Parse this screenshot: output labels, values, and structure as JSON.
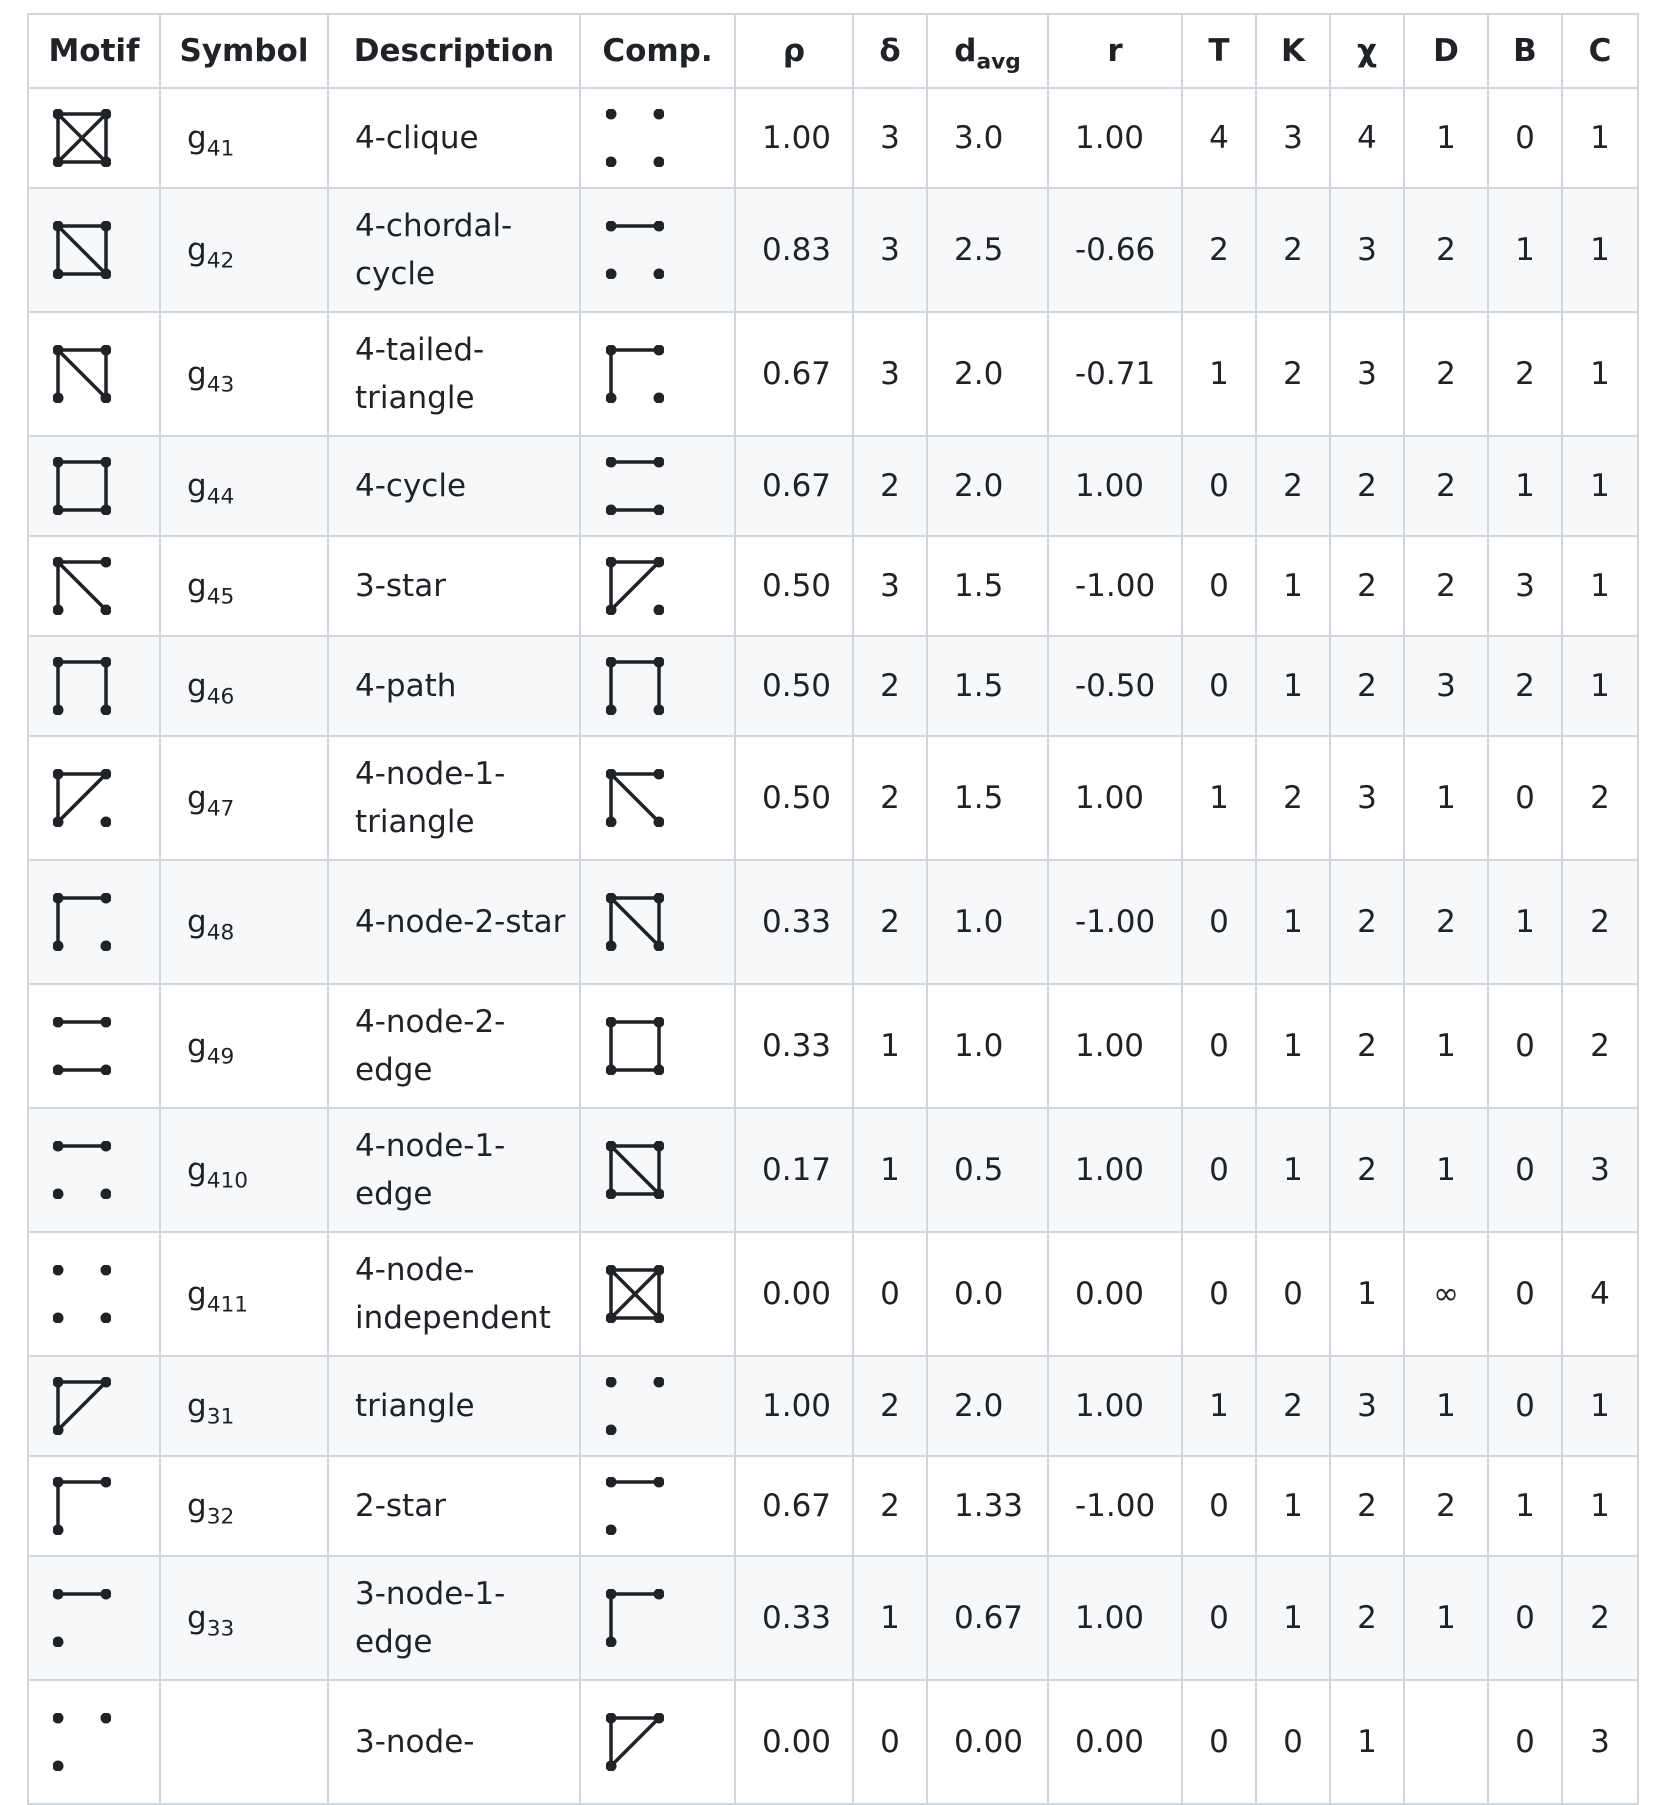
{
  "headers": {
    "motif": "Motif",
    "symbol": "Symbol",
    "description": "Description",
    "comp": "Comp.",
    "rho": "ρ",
    "delta": "δ",
    "davg_main": "d",
    "davg_sub": "avg",
    "r": "r",
    "T": "T",
    "K": "K",
    "chi": "χ",
    "D": "D",
    "B": "B",
    "C": "C"
  },
  "rows": [
    {
      "motif": "g41-motif-icon",
      "comp": "g411-motif-icon",
      "sym_main": "g",
      "sym_sub": "41",
      "description": "4-clique",
      "rho": "1.00",
      "delta": "3",
      "davg": "3.0",
      "r": "1.00",
      "T": "4",
      "K": "3",
      "chi": "4",
      "D": "1",
      "B": "0",
      "C": "1"
    },
    {
      "motif": "g42-motif-icon",
      "comp": "g410-motif-icon",
      "sym_main": "g",
      "sym_sub": "42",
      "description": "4-chordal-cycle",
      "rho": "0.83",
      "delta": "3",
      "davg": "2.5",
      "r": "-0.66",
      "T": "2",
      "K": "2",
      "chi": "3",
      "D": "2",
      "B": "1",
      "C": "1"
    },
    {
      "motif": "g43-motif-icon",
      "comp": "g48-motif-icon",
      "sym_main": "g",
      "sym_sub": "43",
      "description": "4-tailed-triangle",
      "rho": "0.67",
      "delta": "3",
      "davg": "2.0",
      "r": "-0.71",
      "T": "1",
      "K": "2",
      "chi": "3",
      "D": "2",
      "B": "2",
      "C": "1"
    },
    {
      "motif": "g44-motif-icon",
      "comp": "g49-motif-icon",
      "sym_main": "g",
      "sym_sub": "44",
      "description": "4-cycle",
      "rho": "0.67",
      "delta": "2",
      "davg": "2.0",
      "r": "1.00",
      "T": "0",
      "K": "2",
      "chi": "2",
      "D": "2",
      "B": "1",
      "C": "1"
    },
    {
      "motif": "g45-motif-icon",
      "comp": "g47-motif-icon",
      "sym_main": "g",
      "sym_sub": "45",
      "description": "3-star",
      "rho": "0.50",
      "delta": "3",
      "davg": "1.5",
      "r": "-1.00",
      "T": "0",
      "K": "1",
      "chi": "2",
      "D": "2",
      "B": "3",
      "C": "1"
    },
    {
      "motif": "g46-motif-icon",
      "comp": "g46-motif-icon",
      "sym_main": "g",
      "sym_sub": "46",
      "description": "4-path",
      "rho": "0.50",
      "delta": "2",
      "davg": "1.5",
      "r": "-0.50",
      "T": "0",
      "K": "1",
      "chi": "2",
      "D": "3",
      "B": "2",
      "C": "1"
    },
    {
      "motif": "g47-motif-icon",
      "comp": "g45-motif-icon",
      "sym_main": "g",
      "sym_sub": "47",
      "description": "4-node-1-triangle",
      "rho": "0.50",
      "delta": "2",
      "davg": "1.5",
      "r": "1.00",
      "T": "1",
      "K": "2",
      "chi": "3",
      "D": "1",
      "B": "0",
      "C": "2"
    },
    {
      "motif": "g48-motif-icon",
      "comp": "g43-motif-icon",
      "sym_main": "g",
      "sym_sub": "48",
      "description": "4-node-2-star",
      "rho": "0.33",
      "delta": "2",
      "davg": "1.0",
      "r": "-1.00",
      "T": "0",
      "K": "1",
      "chi": "2",
      "D": "2",
      "B": "1",
      "C": "2"
    },
    {
      "motif": "g49-motif-icon",
      "comp": "g44-motif-icon",
      "sym_main": "g",
      "sym_sub": "49",
      "description": "4-node-2-edge",
      "rho": "0.33",
      "delta": "1",
      "davg": "1.0",
      "r": "1.00",
      "T": "0",
      "K": "1",
      "chi": "2",
      "D": "1",
      "B": "0",
      "C": "2"
    },
    {
      "motif": "g410-motif-icon",
      "comp": "g42-motif-icon",
      "sym_main": "g",
      "sym_sub": "410",
      "description": "4-node-1-edge",
      "rho": "0.17",
      "delta": "1",
      "davg": "0.5",
      "r": "1.00",
      "T": "0",
      "K": "1",
      "chi": "2",
      "D": "1",
      "B": "0",
      "C": "3"
    },
    {
      "motif": "g411-motif-icon",
      "comp": "g41-motif-icon",
      "sym_main": "g",
      "sym_sub": "411",
      "description": "4-node-independent",
      "rho": "0.00",
      "delta": "0",
      "davg": "0.0",
      "r": "0.00",
      "T": "0",
      "K": "0",
      "chi": "1",
      "D": "∞",
      "B": "0",
      "C": "4"
    },
    {
      "motif": "g31-motif-icon",
      "comp": "g33-motif-icon",
      "sym_main": "g",
      "sym_sub": "31",
      "description": "triangle",
      "rho": "1.00",
      "delta": "2",
      "davg": "2.0",
      "r": "1.00",
      "T": "1",
      "K": "2",
      "chi": "3",
      "D": "1",
      "B": "0",
      "C": "1"
    },
    {
      "motif": "g32-motif-icon",
      "comp": "g33b-motif-icon",
      "sym_main": "g",
      "sym_sub": "32",
      "description": "2-star",
      "rho": "0.67",
      "delta": "2",
      "davg": "1.33",
      "r": "-1.00",
      "T": "0",
      "K": "1",
      "chi": "2",
      "D": "2",
      "B": "1",
      "C": "1"
    },
    {
      "motif": "g33b-motif-icon",
      "comp": "g32-motif-icon",
      "sym_main": "g",
      "sym_sub": "33",
      "description": "3-node-1-edge",
      "rho": "0.33",
      "delta": "1",
      "davg": "0.67",
      "r": "1.00",
      "T": "0",
      "K": "1",
      "chi": "2",
      "D": "1",
      "B": "0",
      "C": "2"
    },
    {
      "motif": "g34-motif-icon",
      "comp": "g31-motif-icon",
      "sym_main": "",
      "sym_sub": "",
      "description": "3-node-",
      "rho": "0.00",
      "delta": "0",
      "davg": "0.00",
      "r": "0.00",
      "T": "0",
      "K": "0",
      "chi": "1",
      "D": "",
      "B": "0",
      "C": "3"
    }
  ]
}
